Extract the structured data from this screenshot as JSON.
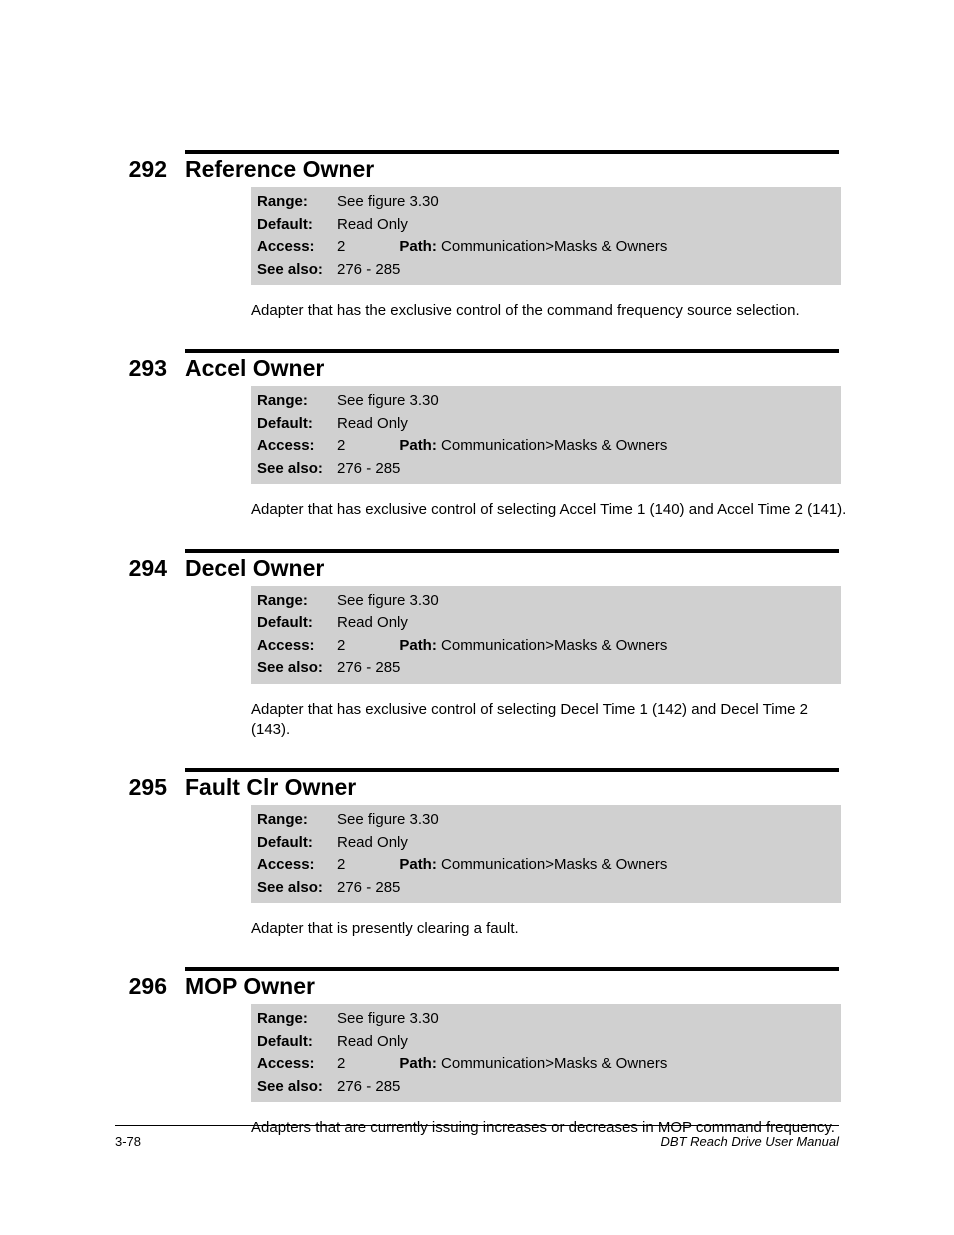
{
  "labels": {
    "range": "Range:",
    "default": "Default:",
    "access": "Access:",
    "path": "Path:",
    "see_also": "See also:"
  },
  "common": {
    "range_value": "See figure 3.30",
    "default_value": "Read Only",
    "access_value": "2",
    "path_value": "Communication>Masks & Owners",
    "see_also_value": "276 - 285"
  },
  "params": [
    {
      "num": "292",
      "title": "Reference Owner",
      "desc": "Adapter that has the exclusive control of the command frequency source selection."
    },
    {
      "num": "293",
      "title": "Accel Owner",
      "desc": "Adapter that has exclusive control of selecting Accel Time 1 (140) and Accel Time 2 (141)."
    },
    {
      "num": "294",
      "title": "Decel Owner",
      "desc": "Adapter that has exclusive control of selecting Decel Time 1 (142) and Decel Time 2 (143)."
    },
    {
      "num": "295",
      "title": "Fault Clr Owner",
      "desc": "Adapter that is presently clearing a fault."
    },
    {
      "num": "296",
      "title": "MOP Owner",
      "desc": "Adapters that are currently issuing increases or decreases in MOP command frequency."
    }
  ],
  "footer": {
    "left": "3-78",
    "right": "DBT Reach Drive User Manual"
  }
}
